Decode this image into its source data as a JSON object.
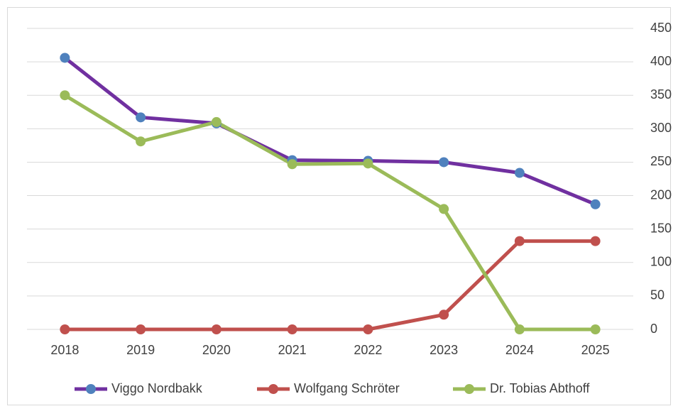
{
  "chart_data": {
    "type": "line",
    "categories": [
      "2018",
      "2019",
      "2020",
      "2021",
      "2022",
      "2023",
      "2024",
      "2025"
    ],
    "series": [
      {
        "name": "Viggo Nordbakk",
        "color": "#7030a0",
        "marker_color": "#4f81bd",
        "values": [
          406,
          317,
          308,
          253,
          252,
          250,
          234,
          187
        ]
      },
      {
        "name": "Wolfgang Schröter",
        "color": "#c0504d",
        "marker_color": "#c0504d",
        "values": [
          0,
          0,
          0,
          0,
          0,
          22,
          132,
          132
        ]
      },
      {
        "name": "Dr. Tobias Abthoff",
        "color": "#9bbb59",
        "marker_color": "#9bbb59",
        "values": [
          350,
          281,
          310,
          247,
          248,
          180,
          0,
          0
        ]
      }
    ],
    "ylim": [
      0,
      450
    ],
    "yticks": [
      0,
      50,
      100,
      150,
      200,
      250,
      300,
      350,
      400,
      450
    ],
    "y_axis_side": "right",
    "grid": true,
    "legend": "bottom"
  }
}
